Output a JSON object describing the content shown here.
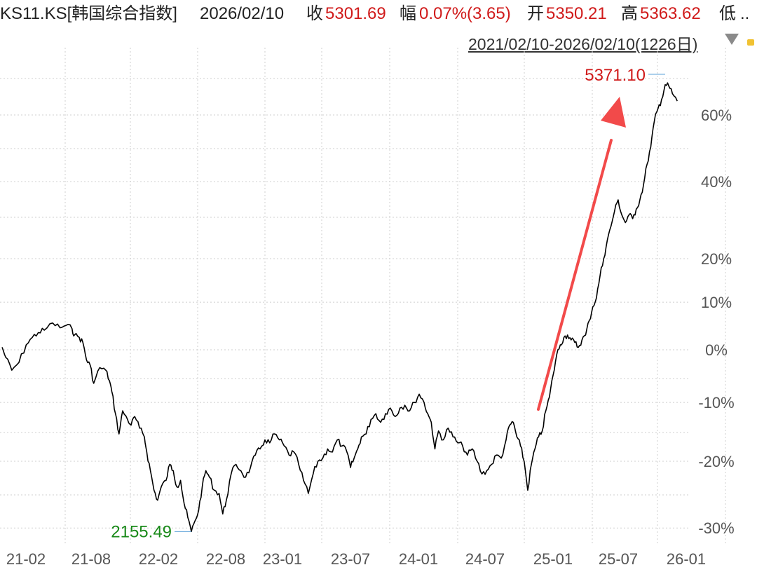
{
  "header": {
    "symbol": "KS11.KS[韩国综合指数]",
    "date": "2026/02/10",
    "close_label": "收",
    "close_value": "5301.69",
    "change_label": "幅",
    "change_value": "0.07%(3.65)",
    "open_label": "开",
    "open_value": "5350.21",
    "high_label": "高",
    "high_value": "5363.62",
    "low_label": "低",
    "more": ".."
  },
  "range_label": "2021/02/10-2026/02/10(1226日)",
  "colors": {
    "up": "#d01a1a",
    "down": "#1a8a1a",
    "line": "#000000",
    "arrow": "#f24a4a",
    "grid": "#cfcfcf",
    "marker": "#5aa0d8"
  },
  "chart_data": {
    "type": "line",
    "y_scale": "log",
    "y_unit": "percent change from start",
    "y_ticks": [
      "60%",
      "40%",
      "20%",
      "10%",
      "0%",
      "-10%",
      "-20%",
      "-30%"
    ],
    "y_tick_values": [
      60,
      40,
      20,
      10,
      0,
      -10,
      -20,
      -30
    ],
    "x_ticks": [
      "21-02",
      "21-08",
      "22-02",
      "22-08",
      "23-01",
      "23-07",
      "24-01",
      "24-07",
      "25-01",
      "25-07",
      "26-01"
    ],
    "grid": true,
    "series": [
      {
        "values": [
          [
            0,
            0.5
          ],
          [
            0.3,
            -1.5
          ],
          [
            0.8,
            -4
          ],
          [
            1.4,
            -2.5
          ],
          [
            2.0,
            1
          ],
          [
            2.5,
            2.5
          ],
          [
            3.0,
            3.5
          ],
          [
            3.5,
            4
          ],
          [
            4.2,
            5.5
          ],
          [
            4.8,
            4.5
          ],
          [
            5.3,
            5
          ],
          [
            5.8,
            4.3
          ],
          [
            6.0,
            3
          ],
          [
            6.4,
            2.5
          ],
          [
            6.7,
            1.5
          ],
          [
            7.0,
            -2
          ],
          [
            7.3,
            -3
          ],
          [
            7.6,
            -6.5
          ],
          [
            8.1,
            -3.5
          ],
          [
            8.6,
            -4
          ],
          [
            8.9,
            -6
          ],
          [
            9.1,
            -8
          ],
          [
            9.4,
            -12
          ],
          [
            9.7,
            -15.5
          ],
          [
            10.0,
            -11.5
          ],
          [
            10.4,
            -13
          ],
          [
            10.7,
            -14
          ],
          [
            11.0,
            -12.5
          ],
          [
            11.4,
            -14.5
          ],
          [
            11.8,
            -16
          ],
          [
            12.0,
            -18.5
          ],
          [
            12.3,
            -21.5
          ],
          [
            12.6,
            -24.5
          ],
          [
            12.9,
            -26
          ],
          [
            13.2,
            -24
          ],
          [
            13.6,
            -23
          ],
          [
            13.9,
            -20.5
          ],
          [
            14.2,
            -21.5
          ],
          [
            14.5,
            -24
          ],
          [
            14.8,
            -23
          ],
          [
            15.1,
            -26.5
          ],
          [
            15.4,
            -28.5
          ],
          [
            15.7,
            -30.5
          ],
          [
            16.0,
            -29
          ],
          [
            16.3,
            -27.5
          ],
          [
            16.6,
            -24
          ],
          [
            16.9,
            -21.5
          ],
          [
            17.2,
            -22.5
          ],
          [
            17.6,
            -24.5
          ],
          [
            18.0,
            -25
          ],
          [
            18.3,
            -28
          ],
          [
            18.6,
            -26
          ],
          [
            19.0,
            -22
          ],
          [
            19.4,
            -20.5
          ],
          [
            19.8,
            -21.5
          ],
          [
            20.2,
            -22.5
          ],
          [
            20.6,
            -21
          ],
          [
            21.0,
            -19
          ],
          [
            21.4,
            -18
          ],
          [
            21.8,
            -16.5
          ],
          [
            22.2,
            -17
          ],
          [
            22.6,
            -15.5
          ],
          [
            23.0,
            -16.5
          ],
          [
            23.4,
            -17.5
          ],
          [
            23.8,
            -19
          ],
          [
            24.2,
            -18.5
          ],
          [
            24.6,
            -20.5
          ],
          [
            25.0,
            -23
          ],
          [
            25.4,
            -25
          ],
          [
            25.8,
            -22
          ],
          [
            26.2,
            -20
          ],
          [
            26.6,
            -19.5
          ],
          [
            27.0,
            -18
          ],
          [
            27.4,
            -18.5
          ],
          [
            27.8,
            -16.5
          ],
          [
            28.2,
            -17.5
          ],
          [
            28.6,
            -18.5
          ],
          [
            28.9,
            -21
          ],
          [
            29.2,
            -19.5
          ],
          [
            29.5,
            -18
          ],
          [
            29.8,
            -16
          ],
          [
            30.2,
            -15.5
          ],
          [
            30.6,
            -13
          ],
          [
            31.0,
            -12
          ],
          [
            31.4,
            -13.5
          ],
          [
            31.8,
            -12
          ],
          [
            32.2,
            -11
          ],
          [
            32.6,
            -12.5
          ],
          [
            33.0,
            -11
          ],
          [
            33.4,
            -10.5
          ],
          [
            33.8,
            -11.5
          ],
          [
            34.2,
            -10
          ],
          [
            34.6,
            -8.5
          ],
          [
            35.0,
            -10
          ],
          [
            35.3,
            -12
          ],
          [
            35.6,
            -13.5
          ],
          [
            35.9,
            -18
          ],
          [
            36.2,
            -15
          ],
          [
            36.6,
            -16.5
          ],
          [
            37.0,
            -14.5
          ],
          [
            37.4,
            -16
          ],
          [
            37.8,
            -17
          ],
          [
            38.2,
            -17.5
          ],
          [
            38.6,
            -19
          ],
          [
            39.0,
            -18
          ],
          [
            39.4,
            -20
          ],
          [
            39.8,
            -22
          ],
          [
            40.2,
            -21.5
          ],
          [
            40.6,
            -20.5
          ],
          [
            41.0,
            -19
          ],
          [
            41.4,
            -19.5
          ],
          [
            41.8,
            -16.5
          ],
          [
            42.1,
            -14
          ],
          [
            42.4,
            -13.5
          ],
          [
            42.7,
            -16
          ],
          [
            43.0,
            -17.5
          ],
          [
            43.3,
            -20
          ],
          [
            43.6,
            -24.5
          ],
          [
            43.9,
            -20.5
          ],
          [
            44.2,
            -18
          ],
          [
            44.5,
            -16
          ],
          [
            44.8,
            -15
          ],
          [
            45.1,
            -11.5
          ],
          [
            45.4,
            -9
          ],
          [
            45.7,
            -5
          ],
          [
            46.0,
            -1
          ],
          [
            46.3,
            1
          ],
          [
            46.6,
            2.5
          ],
          [
            46.9,
            3
          ],
          [
            47.2,
            2
          ],
          [
            47.5,
            1.5
          ],
          [
            47.8,
            0.5
          ],
          [
            48.1,
            2
          ],
          [
            48.4,
            3
          ],
          [
            48.7,
            6
          ],
          [
            49.0,
            9
          ],
          [
            49.3,
            11
          ],
          [
            49.6,
            16
          ],
          [
            49.9,
            20
          ],
          [
            50.2,
            24.5
          ],
          [
            50.5,
            28
          ],
          [
            50.8,
            32
          ],
          [
            51.1,
            35
          ],
          [
            51.4,
            31
          ],
          [
            51.7,
            29
          ],
          [
            52.0,
            31
          ],
          [
            52.3,
            30
          ],
          [
            52.6,
            32.5
          ],
          [
            52.9,
            35
          ],
          [
            53.2,
            39
          ],
          [
            53.5,
            45
          ],
          [
            53.8,
            50
          ],
          [
            54.1,
            58
          ],
          [
            54.4,
            62
          ],
          [
            54.7,
            65
          ],
          [
            55.0,
            70
          ],
          [
            55.3,
            69.5
          ],
          [
            55.6,
            67
          ],
          [
            56.0,
            64.5
          ]
        ]
      }
    ],
    "annotations": {
      "max_label": "5371.10",
      "min_label": "2155.49"
    }
  }
}
